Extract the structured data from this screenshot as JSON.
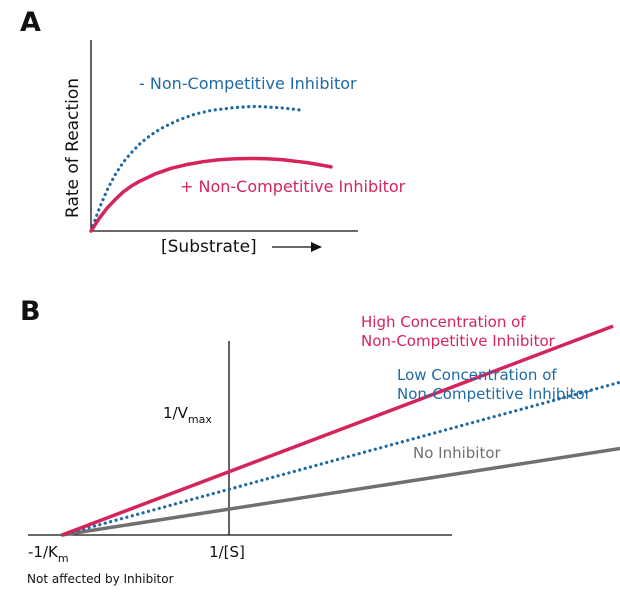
{
  "chart_data": [
    {
      "panel": "A",
      "type": "line",
      "xlabel": "[Substrate]",
      "ylabel": "Rate of Reaction",
      "colors": {
        "with_inhibitor": "#d4245a",
        "without_inhibitor": "#1f6aa5",
        "axis": "#111111"
      },
      "series": [
        {
          "name": "- Non-Competitive Inhibitor",
          "style": "dotted",
          "color": "#1f6aa5",
          "x": [
            0,
            0.5,
            1.0,
            1.5,
            2.0,
            2.5,
            3.0,
            3.5,
            4.0,
            4.5,
            5.0,
            5.5,
            6.0,
            6.5,
            7.0,
            7.5,
            8.0,
            8.5,
            9.0,
            9.5,
            10.0,
            10.5,
            11.0,
            11.5,
            12.0,
            12.5,
            13.0
          ],
          "y": [
            0,
            2.3,
            4.3,
            5.9,
            7.2,
            8.2,
            9.1,
            9.8,
            10.4,
            10.9,
            11.3,
            11.7,
            12.0,
            12.3,
            12.5,
            12.7,
            12.8,
            12.9,
            13.0,
            13.05,
            13.1,
            13.1,
            13.05,
            13.0,
            12.95,
            12.85,
            12.75
          ]
        },
        {
          "name": "+ Non-Competitive Inhibitor",
          "style": "solid",
          "color": "#d4245a",
          "x": [
            0,
            0.5,
            1.0,
            1.5,
            2.0,
            2.5,
            3.0,
            3.5,
            4.0,
            4.5,
            5.0,
            5.5,
            6.0,
            6.5,
            7.0,
            7.5,
            8.0,
            8.5,
            9.0,
            9.5,
            10.0,
            10.5,
            11.0,
            11.5,
            12.0,
            12.5,
            13.0,
            13.5,
            14.0,
            14.5,
            15.0
          ],
          "y": [
            0,
            1.3,
            2.4,
            3.3,
            4.1,
            4.7,
            5.2,
            5.6,
            6.0,
            6.3,
            6.6,
            6.8,
            7.0,
            7.15,
            7.3,
            7.4,
            7.5,
            7.55,
            7.6,
            7.62,
            7.63,
            7.62,
            7.6,
            7.55,
            7.5,
            7.4,
            7.3,
            7.2,
            7.05,
            6.9,
            6.75
          ]
        }
      ]
    },
    {
      "panel": "B",
      "type": "line",
      "xlabel": "1/[S]",
      "ylabel": "1/V",
      "ylabel_sub": "max",
      "x_intercept_label": "-1/K",
      "x_intercept_sub": "m",
      "note": "Not affected by Inhibitor",
      "colors": {
        "high": "#d4245a",
        "low": "#1f6aa5",
        "none": "#707070",
        "axis": "#111111"
      },
      "series": [
        {
          "name": "High Concentration of Non-Competitive Inhibitor",
          "name_lines": [
            "High Concentration of",
            "Non-Competitive Inhibitor"
          ],
          "style": "solid",
          "color": "#d4245a",
          "x": [
            -1,
            2.3
          ],
          "y": [
            0,
            3.3
          ]
        },
        {
          "name": "Low Concentration of Non-Competitive Inhibitor",
          "name_lines": [
            "Low Concentration of",
            "Non-Competitive Inhibitor"
          ],
          "style": "dotted",
          "color": "#1f6aa5",
          "x": [
            -1,
            2.6
          ],
          "y": [
            0,
            2.6
          ]
        },
        {
          "name": "No Inhibitor",
          "name_lines": [
            "No Inhibitor"
          ],
          "style": "solid",
          "color": "#707070",
          "x": [
            -1,
            3.4
          ],
          "y": [
            0,
            1.8
          ]
        }
      ]
    }
  ]
}
